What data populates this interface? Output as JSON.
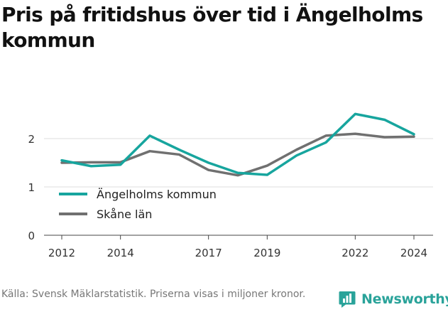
{
  "title": "Pris på fritidshus över tid i Ängelholms kommun",
  "source": "Källa: Svensk Mäklarstatistik. Priserna visas i miljoner kronor.",
  "brand": {
    "name": "Newsworthy",
    "icon": "newsworthy-logo-icon",
    "color": "#2aa39a"
  },
  "chart_data": {
    "type": "line",
    "title": "Pris på fritidshus över tid i Ängelholms kommun",
    "xlabel": "",
    "ylabel": "",
    "x": [
      2012,
      2013,
      2014,
      2015,
      2016,
      2017,
      2018,
      2019,
      2020,
      2021,
      2022,
      2023,
      2024
    ],
    "xlim": [
      2012,
      2024
    ],
    "ylim": [
      0,
      2.8
    ],
    "yticks": [
      0,
      1,
      2
    ],
    "xticks": [
      2012,
      2014,
      2017,
      2019,
      2022,
      2024
    ],
    "grid": "horizontal",
    "legend_position": "lower-left",
    "series": [
      {
        "name": "Ängelholms kommun",
        "color": "#17a59e",
        "values": [
          1.55,
          1.43,
          1.46,
          2.06,
          1.77,
          1.5,
          1.29,
          1.25,
          1.65,
          1.92,
          2.51,
          2.39,
          2.09
        ]
      },
      {
        "name": "Skåne län",
        "color": "#707070",
        "values": [
          1.5,
          1.51,
          1.51,
          1.74,
          1.67,
          1.35,
          1.24,
          1.44,
          1.77,
          2.06,
          2.1,
          2.03,
          2.04
        ]
      }
    ]
  }
}
